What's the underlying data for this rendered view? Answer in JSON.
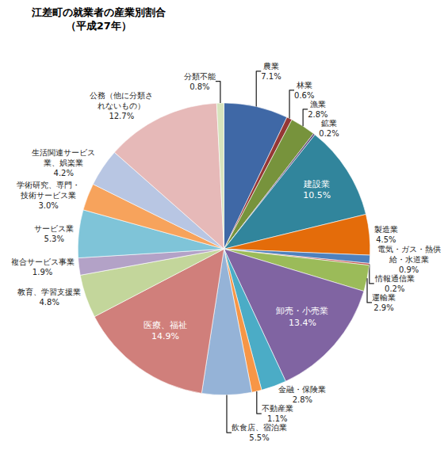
{
  "chart_data": {
    "type": "pie",
    "title": "江差町の就業者の産業別割合",
    "subtitle": "（平成27年）",
    "categories": [
      "農業",
      "林業",
      "漁業",
      "鉱業",
      "建設業",
      "製造業",
      "電気・ガス・熱供給・水道業",
      "情報通信業",
      "運輸業",
      "卸売・小売業",
      "金融・保険業",
      "不動産業",
      "飲食店、宿泊業",
      "医療、福祉",
      "教育、学習支援業",
      "複合サービス事業",
      "サービス業",
      "学術研究、専門・技術サービス業",
      "生活関連サービス業、娯楽業",
      "公務（他に分類されないもの）",
      "分類不能"
    ],
    "values": [
      7.1,
      0.6,
      2.8,
      0.2,
      10.5,
      4.5,
      0.9,
      0.2,
      2.9,
      13.4,
      2.8,
      1.1,
      5.5,
      14.9,
      4.8,
      1.9,
      5.3,
      3.0,
      4.2,
      12.7,
      0.8
    ],
    "value_labels": [
      "7.1%",
      "0.6%",
      "2.8%",
      "0.2%",
      "10.5%",
      "4.5%",
      "0.9%",
      "0.2%",
      "2.9%",
      "13.4%",
      "2.8%",
      "1.1%",
      "5.5%",
      "14.9%",
      "4.8%",
      "1.9%",
      "5.3%",
      "3.0%",
      "4.2%",
      "12.7%",
      "0.8%"
    ],
    "colors": [
      "#3f68a6",
      "#953735",
      "#77933c",
      "#5f497a",
      "#31859c",
      "#e46c0a",
      "#4f81bd",
      "#c0504d",
      "#9bbb59",
      "#8064a2",
      "#4bacc6",
      "#f79646",
      "#95b3d7",
      "#d07f7b",
      "#c3d69b",
      "#b3a2c7",
      "#7fc4d8",
      "#f7a35c",
      "#b8c6e3",
      "#e6b9b8",
      "#d7e4bd"
    ],
    "data_labels": true
  }
}
